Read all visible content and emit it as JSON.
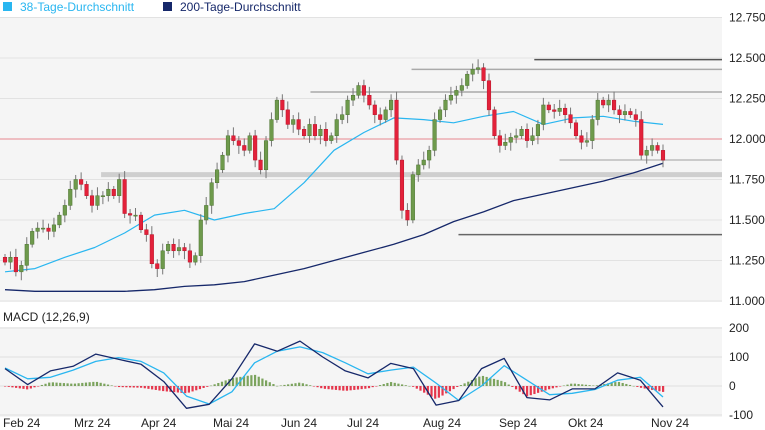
{
  "chart_data": [
    {
      "type": "candlestick",
      "title": "",
      "legend": [
        {
          "label": "38-Tage-Durchschnitt",
          "color": "#29b6f0"
        },
        {
          "label": "200-Tage-Durchschnitt",
          "color": "#16286a"
        }
      ],
      "legend_placement": "top-left",
      "y_ticks": [
        "12.750",
        "12.500",
        "12.250",
        "12.000",
        "11.750",
        "11.500",
        "11.250",
        "11.000"
      ],
      "ylim": [
        11.0,
        12.75
      ],
      "grid": true,
      "close": [
        11.24,
        11.27,
        11.18,
        11.22,
        11.35,
        11.43,
        11.45,
        11.45,
        11.43,
        11.47,
        11.53,
        11.59,
        11.69,
        11.75,
        11.72,
        11.65,
        11.59,
        11.65,
        11.65,
        11.69,
        11.65,
        11.75,
        11.54,
        11.53,
        11.53,
        11.44,
        11.41,
        11.23,
        11.2,
        11.31,
        11.35,
        11.31,
        11.33,
        11.31,
        11.24,
        11.28,
        11.5,
        11.59,
        11.73,
        11.81,
        11.9,
        12.02,
        11.99,
        11.96,
        11.93,
        12.02,
        11.87,
        11.81,
        11.99,
        12.12,
        12.24,
        12.18,
        12.09,
        12.12,
        12.06,
        12.02,
        12.09,
        12.02,
        12.06,
        11.99,
        12.02,
        12.12,
        12.15,
        12.24,
        12.27,
        12.33,
        12.27,
        12.21,
        12.15,
        12.12,
        12.18,
        12.24,
        11.87,
        11.56,
        11.5,
        11.78,
        11.84,
        11.87,
        11.93,
        12.12,
        12.18,
        12.24,
        12.27,
        12.3,
        12.33,
        12.4,
        12.43,
        12.44,
        12.36,
        12.18,
        12.02,
        11.96,
        11.98,
        12.01,
        12.02,
        12.06,
        11.99,
        12.02,
        12.09,
        12.21,
        12.18,
        12.17,
        12.19,
        12.15,
        12.1,
        12.02,
        11.98,
        11.99,
        12.12,
        12.24,
        12.21,
        12.24,
        12.18,
        12.15,
        12.17,
        12.15,
        12.12,
        11.9,
        11.93,
        11.96,
        11.93,
        11.87
      ],
      "ma38": [
        11.18,
        11.2,
        11.27,
        11.33,
        11.42,
        11.53,
        11.56,
        11.5,
        11.54,
        11.57,
        11.73,
        11.93,
        12.04,
        12.13,
        12.12,
        12.1,
        12.14,
        12.17,
        12.09,
        12.13,
        12.14,
        12.11,
        12.09
      ],
      "ma200": [
        11.07,
        11.06,
        11.06,
        11.06,
        11.06,
        11.07,
        11.09,
        11.1,
        11.12,
        11.16,
        11.2,
        11.25,
        11.3,
        11.35,
        11.41,
        11.49,
        11.55,
        11.62,
        11.66,
        11.7,
        11.74,
        11.79,
        11.85
      ],
      "levels": [
        {
          "value": 12.49,
          "color": "#555555",
          "from_fraction": 0.74,
          "width": 1.5
        },
        {
          "value": 12.43,
          "color": "#aaaaaa",
          "from_fraction": 0.57,
          "width": 1.5
        },
        {
          "value": 12.29,
          "color": "#aaaaaa",
          "from_fraction": 0.43,
          "width": 1.5
        },
        {
          "value": 12.0,
          "color": "#e8868e",
          "from_fraction": 0.0,
          "width": 1
        },
        {
          "value": 11.87,
          "color": "#bbbbbb",
          "from_fraction": 0.775,
          "width": 1.5
        },
        {
          "value": 11.78,
          "color": "#cfcfcf",
          "from_fraction": 0.14,
          "width": 5
        },
        {
          "value": 11.41,
          "color": "#666666",
          "from_fraction": 0.635,
          "width": 1.5
        }
      ],
      "colors": {
        "up": "#6e9a4c",
        "down": "#e3213a",
        "up_edge": "#4d7432",
        "down_edge": "#b8142a"
      }
    },
    {
      "type": "line",
      "title": "MACD (12,26,9)",
      "y_ticks": [
        "200",
        "100",
        "0",
        "-100"
      ],
      "ylim": [
        -100,
        200
      ],
      "macd": [
        60,
        5,
        52,
        68,
        110,
        92,
        75,
        15,
        -77,
        -63,
        25,
        145,
        120,
        155,
        100,
        52,
        28,
        78,
        60,
        -66,
        -50,
        60,
        95,
        -40,
        -48,
        -10,
        -10,
        45,
        20,
        -72
      ],
      "signal": [
        62,
        25,
        30,
        55,
        85,
        98,
        85,
        45,
        -35,
        -62,
        -20,
        80,
        120,
        135,
        115,
        80,
        42,
        55,
        65,
        10,
        -50,
        0,
        70,
        20,
        -30,
        -25,
        -12,
        20,
        30,
        -38
      ],
      "colors": {
        "macd": "#16286a",
        "signal": "#29b6f0",
        "hist_up": "#6e9a4c",
        "hist_down": "#e3213a"
      }
    }
  ],
  "x_ticks": [
    "Feb 24",
    "Mrz 24",
    "Apr 24",
    "Mai 24",
    "Jun 24",
    "Jul 24",
    "Aug 24",
    "Sep 24",
    "Okt 24",
    "Nov 24"
  ]
}
